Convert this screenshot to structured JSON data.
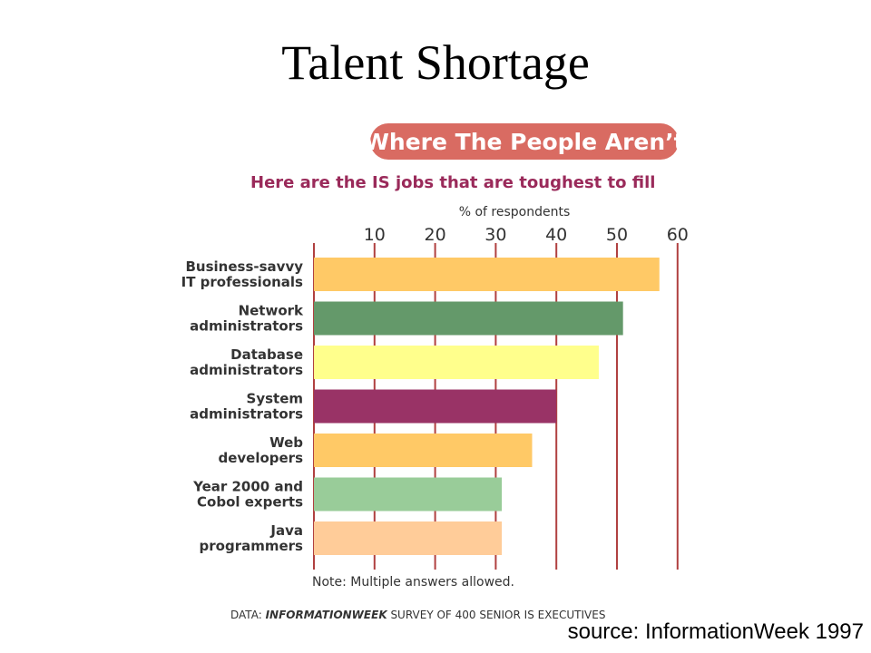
{
  "slide": {
    "title": "Talent Shortage",
    "source": "source: InformationWeek 1997"
  },
  "chart_data": {
    "type": "bar",
    "orientation": "horizontal",
    "banner": "Where The People Aren’t",
    "title": "Here are the IS jobs that are toughest to fill",
    "xlabel": "% of respondents",
    "xlim": [
      0,
      60
    ],
    "xticks": [
      10,
      20,
      30,
      40,
      50,
      60
    ],
    "grid": true,
    "categories": [
      [
        "Business-savvy",
        "IT professionals"
      ],
      [
        "Network",
        "administrators"
      ],
      [
        "Database",
        "administrators"
      ],
      [
        "System",
        "administrators"
      ],
      [
        "Web",
        "developers"
      ],
      [
        "Year 2000 and",
        "Cobol experts"
      ],
      [
        "Java",
        "programmers"
      ]
    ],
    "values": [
      57,
      51,
      47,
      40,
      36,
      31,
      31
    ],
    "bar_colors": [
      "#ffc966",
      "#64996a",
      "#ffff8c",
      "#993366",
      "#ffc966",
      "#99cc99",
      "#ffcc99"
    ],
    "gridline_color": "#b04040",
    "banner_color": "#d96b62",
    "note": "Note: Multiple answers allowed.",
    "data_credit": {
      "prefix": "DATA: ",
      "publication": "INFORMATIONWEEK",
      "suffix": " SURVEY OF 400 SENIOR IS EXECUTIVES"
    }
  }
}
